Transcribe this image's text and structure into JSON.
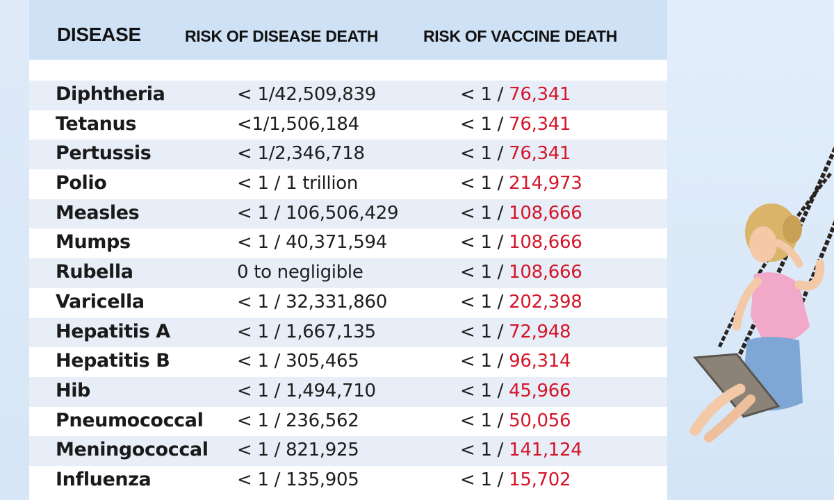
{
  "table": {
    "headers": {
      "disease": "DISEASE",
      "disease_death": "RISK OF DISEASE DEATH",
      "vaccine_death": "RISK OF VACCINE DEATH"
    },
    "rows": [
      {
        "disease": "Diphtheria",
        "disease_risk": "< 1/42,509,839",
        "vaccine_prefix": "< 1 / ",
        "vaccine_num": "76,341"
      },
      {
        "disease": "Tetanus",
        "disease_risk": "<1/1,506,184",
        "vaccine_prefix": "< 1 / ",
        "vaccine_num": "76,341"
      },
      {
        "disease": "Pertussis",
        "disease_risk": "< 1/2,346,718",
        "vaccine_prefix": "< 1 / ",
        "vaccine_num": "76,341"
      },
      {
        "disease": "Polio",
        "disease_risk": "< 1 / 1 trillion",
        "vaccine_prefix": "< 1 / ",
        "vaccine_num": "214,973"
      },
      {
        "disease": "Measles",
        "disease_risk": "< 1 / 106,506,429",
        "vaccine_prefix": "< 1 / ",
        "vaccine_num": "108,666"
      },
      {
        "disease": "Mumps",
        "disease_risk": "< 1 / 40,371,594",
        "vaccine_prefix": "< 1 / ",
        "vaccine_num": "108,666"
      },
      {
        "disease": "Rubella",
        "disease_risk": "0 to negligible",
        "vaccine_prefix": "< 1 / ",
        "vaccine_num": "108,666"
      },
      {
        "disease": "Varicella",
        "disease_risk": "< 1 / 32,331,860",
        "vaccine_prefix": "< 1 / ",
        "vaccine_num": "202,398"
      },
      {
        "disease": "Hepatitis A",
        "disease_risk": "< 1 / 1,667,135",
        "vaccine_prefix": "< 1 / ",
        "vaccine_num": "72,948"
      },
      {
        "disease": "Hepatitis B",
        "disease_risk": "< 1 / 305,465",
        "vaccine_prefix": "< 1 / ",
        "vaccine_num": "96,314"
      },
      {
        "disease": "Hib",
        "disease_risk": "< 1 / 1,494,710",
        "vaccine_prefix": "< 1 / ",
        "vaccine_num": "45,966"
      },
      {
        "disease": "Pneumococcal",
        "disease_risk": "< 1 / 236,562",
        "vaccine_prefix": "< 1 / ",
        "vaccine_num": "50,056"
      },
      {
        "disease": "Meningococcal",
        "disease_risk": "< 1 / 821,925",
        "vaccine_prefix": "< 1 / ",
        "vaccine_num": "141,124"
      },
      {
        "disease": "Influenza",
        "disease_risk": "< 1 / 135,905",
        "vaccine_prefix": "< 1 / ",
        "vaccine_num": "15,702"
      }
    ]
  },
  "colors": {
    "header_bg": "#cfe1f5",
    "row_shade": "#e8eef7",
    "vaccine_number": "#d4152a",
    "sky": "#dbe9f8"
  },
  "photo": {
    "subject": "child-on-swing-image"
  }
}
